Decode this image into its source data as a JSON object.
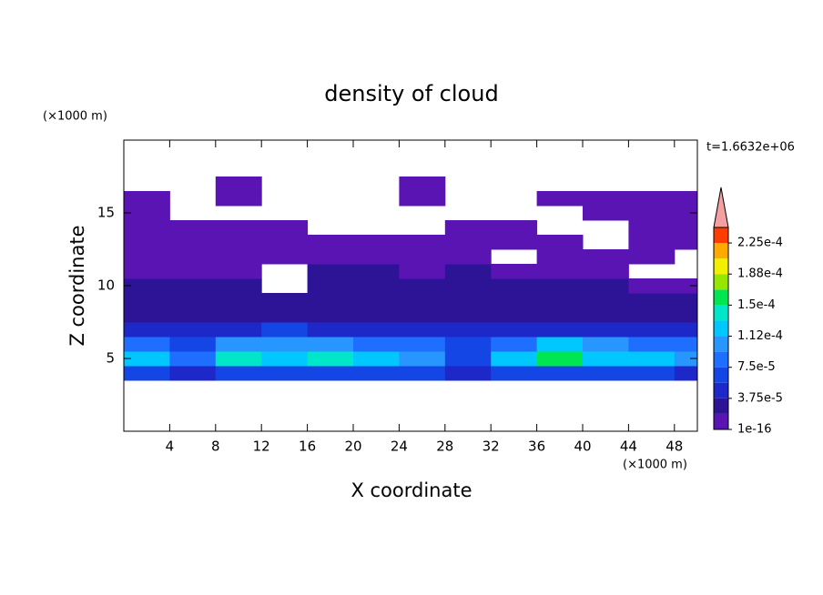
{
  "chart_data": {
    "type": "contour",
    "title": "density of cloud",
    "xlabel": "X coordinate",
    "ylabel": "Z coordinate",
    "xunit": "(×1000 m)",
    "yunit": "(×1000 m)",
    "annotation": "t=1.6632e+06",
    "xlim": [
      0,
      50
    ],
    "ylim": [
      0,
      20
    ],
    "xticks": [
      4,
      8,
      12,
      16,
      20,
      24,
      28,
      32,
      36,
      40,
      44,
      48
    ],
    "yticks": [
      5,
      10,
      15
    ],
    "x": [
      2,
      6,
      10,
      14,
      18,
      22,
      26,
      30,
      34,
      38,
      42,
      46,
      50
    ],
    "y": [
      4,
      5,
      6,
      7,
      8,
      9,
      10,
      11,
      12,
      13,
      14,
      15,
      16,
      17
    ],
    "z": [
      [
        6e-05,
        4e-05,
        7e-05,
        7e-05,
        6e-05,
        6e-05,
        6e-05,
        5e-05,
        6e-05,
        7e-05,
        6e-05,
        6e-05,
        5e-05
      ],
      [
        0.00013,
        8e-05,
        0.00014,
        0.00013,
        0.00014,
        0.00012,
        0.00011,
        6e-05,
        0.00012,
        0.00016,
        0.00013,
        0.00012,
        0.0001
      ],
      [
        9e-05,
        6e-05,
        0.0001,
        0.00011,
        0.0001,
        9e-05,
        8e-05,
        6e-05,
        8e-05,
        0.00012,
        0.0001,
        9e-05,
        8e-05
      ],
      [
        4e-05,
        4e-05,
        5e-05,
        6e-05,
        5e-05,
        4e-05,
        4e-05,
        5e-05,
        5e-05,
        5e-05,
        4e-05,
        4e-05,
        4e-05
      ],
      [
        2e-05,
        2e-05,
        3e-05,
        3e-05,
        3e-05,
        2e-05,
        2e-05,
        3e-05,
        3e-05,
        3e-05,
        2e-05,
        2e-05,
        2e-05
      ],
      [
        2e-05,
        2e-05,
        2e-05,
        2e-05,
        2e-05,
        2e-05,
        2e-05,
        2e-05,
        2e-05,
        2e-05,
        2e-05,
        2e-05,
        2e-05
      ],
      [
        2e-05,
        2e-05,
        2e-05,
        null,
        2e-05,
        2e-05,
        2e-05,
        2e-05,
        2e-05,
        2e-05,
        2e-05,
        1e-05,
        1e-05
      ],
      [
        1e-05,
        1e-05,
        1e-05,
        null,
        2e-05,
        2e-05,
        1e-05,
        2e-05,
        1e-05,
        1e-05,
        1e-05,
        null,
        null
      ],
      [
        1e-05,
        1e-05,
        1e-05,
        1e-05,
        1e-05,
        1e-05,
        1e-05,
        1e-05,
        null,
        1e-05,
        1e-05,
        1e-05,
        null
      ],
      [
        1e-05,
        1e-05,
        1e-05,
        1e-05,
        1e-05,
        1e-05,
        1e-05,
        1e-05,
        1e-05,
        1e-05,
        null,
        1e-05,
        1e-05
      ],
      [
        1e-05,
        1e-05,
        1e-05,
        1e-05,
        null,
        null,
        null,
        1e-05,
        1e-05,
        null,
        null,
        1e-05,
        1e-05
      ],
      [
        1e-05,
        null,
        null,
        null,
        null,
        null,
        null,
        null,
        null,
        null,
        1e-05,
        1e-05,
        1e-05
      ],
      [
        1e-05,
        null,
        1e-05,
        null,
        null,
        null,
        1e-05,
        null,
        null,
        1e-05,
        1e-05,
        1e-05,
        1e-05
      ],
      [
        null,
        null,
        1e-05,
        null,
        null,
        null,
        1e-05,
        null,
        null,
        null,
        null,
        null,
        null
      ]
    ],
    "levels": [
      1e-16,
      1.875e-05,
      3.75e-05,
      5.625e-05,
      7.5e-05,
      9.375e-05,
      0.0001125,
      0.00013125,
      0.00015,
      0.00016875,
      0.0001875,
      0.00020625,
      0.000225,
      0.00024375
    ],
    "colors": [
      "#5a14b4",
      "#2d1496",
      "#1e28c8",
      "#1446e6",
      "#1e6eff",
      "#2896ff",
      "#00c8ff",
      "#00e6c8",
      "#00e650",
      "#96e600",
      "#f0f000",
      "#ffaa00",
      "#ff3c00"
    ],
    "extend_color": "#f5a0a0",
    "cbar_ticks": [
      {
        "value": 1e-16,
        "label": "1e-16"
      },
      {
        "value": 3.75e-05,
        "label": "3.75e-5"
      },
      {
        "value": 7.5e-05,
        "label": "7.5e-5"
      },
      {
        "value": 0.0001125,
        "label": "1.12e-4"
      },
      {
        "value": 0.00015,
        "label": "1.5e-4"
      },
      {
        "value": 0.0001875,
        "label": "1.88e-4"
      },
      {
        "value": 0.000225,
        "label": "2.25e-4"
      }
    ]
  }
}
